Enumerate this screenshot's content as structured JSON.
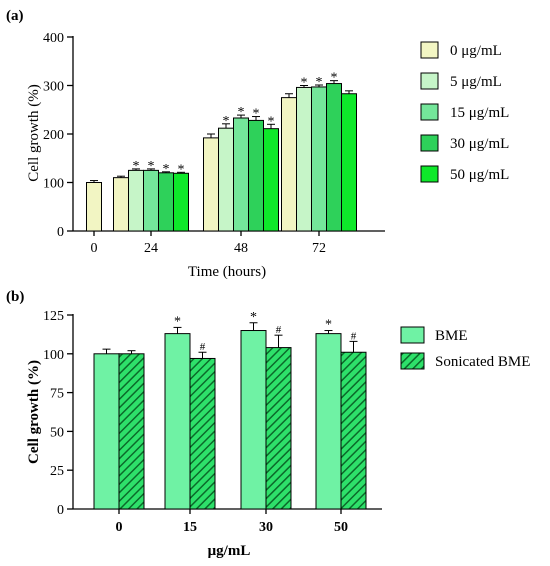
{
  "colors": {
    "axis": "#000000",
    "panel_a_fills": [
      "#f2f5c3",
      "#c6f5c8",
      "#74e69a",
      "#2ed15a",
      "#0ee82a"
    ],
    "bme": "#6ff2a4",
    "sonicated_fill": "#2ee06a",
    "sonicated_hatch": "#0b6a2a"
  },
  "chart_data": [
    {
      "type": "bar",
      "panel_label": "(a)",
      "title": "",
      "xlabel": "Time (hours)",
      "ylabel": "Cell growth (%)",
      "ylim": [
        0,
        400
      ],
      "yticks": [
        "0",
        "100",
        "200",
        "300",
        "400"
      ],
      "grid": false,
      "legend_position": "right",
      "control": {
        "category": "0",
        "value": 100,
        "error": 4
      },
      "categories": [
        "24",
        "48",
        "72"
      ],
      "series": [
        {
          "name": "0 μg/mL",
          "values": [
            110,
            192,
            275
          ],
          "errors": [
            3,
            8,
            8
          ],
          "marks": [
            "",
            "",
            ""
          ]
        },
        {
          "name": "5 μg/mL",
          "values": [
            125,
            212,
            296
          ],
          "errors": [
            3,
            9,
            4
          ],
          "marks": [
            "*",
            "*",
            "*"
          ]
        },
        {
          "name": "15 μg/mL",
          "values": [
            125,
            233,
            297
          ],
          "errors": [
            3,
            6,
            4
          ],
          "marks": [
            "*",
            "*",
            "*"
          ]
        },
        {
          "name": "30 μg/mL",
          "values": [
            120,
            228,
            304
          ],
          "errors": [
            2,
            8,
            6
          ],
          "marks": [
            "*",
            "*",
            "*"
          ]
        },
        {
          "name": "50 μg/mL",
          "values": [
            119,
            211,
            283
          ],
          "errors": [
            2,
            9,
            6
          ],
          "marks": [
            "*",
            "*",
            ""
          ]
        }
      ]
    },
    {
      "type": "bar",
      "panel_label": "(b)",
      "title": "",
      "xlabel": "μg/mL",
      "ylabel": "Cell growth (%)",
      "ylim": [
        0,
        125
      ],
      "yticks": [
        "0",
        "25",
        "50",
        "75",
        "100",
        "125"
      ],
      "grid": false,
      "legend_position": "right",
      "categories": [
        "0",
        "15",
        "30",
        "50"
      ],
      "series": [
        {
          "name": "BME",
          "values": [
            100,
            113,
            115,
            113
          ],
          "errors": [
            3,
            4,
            5,
            2
          ],
          "marks": [
            "",
            "*",
            "*",
            "*"
          ]
        },
        {
          "name": "Sonicated BME",
          "values": [
            100,
            97,
            104,
            101
          ],
          "errors": [
            2,
            4,
            8,
            7
          ],
          "marks": [
            "",
            "#",
            "#",
            "#"
          ]
        }
      ]
    }
  ]
}
